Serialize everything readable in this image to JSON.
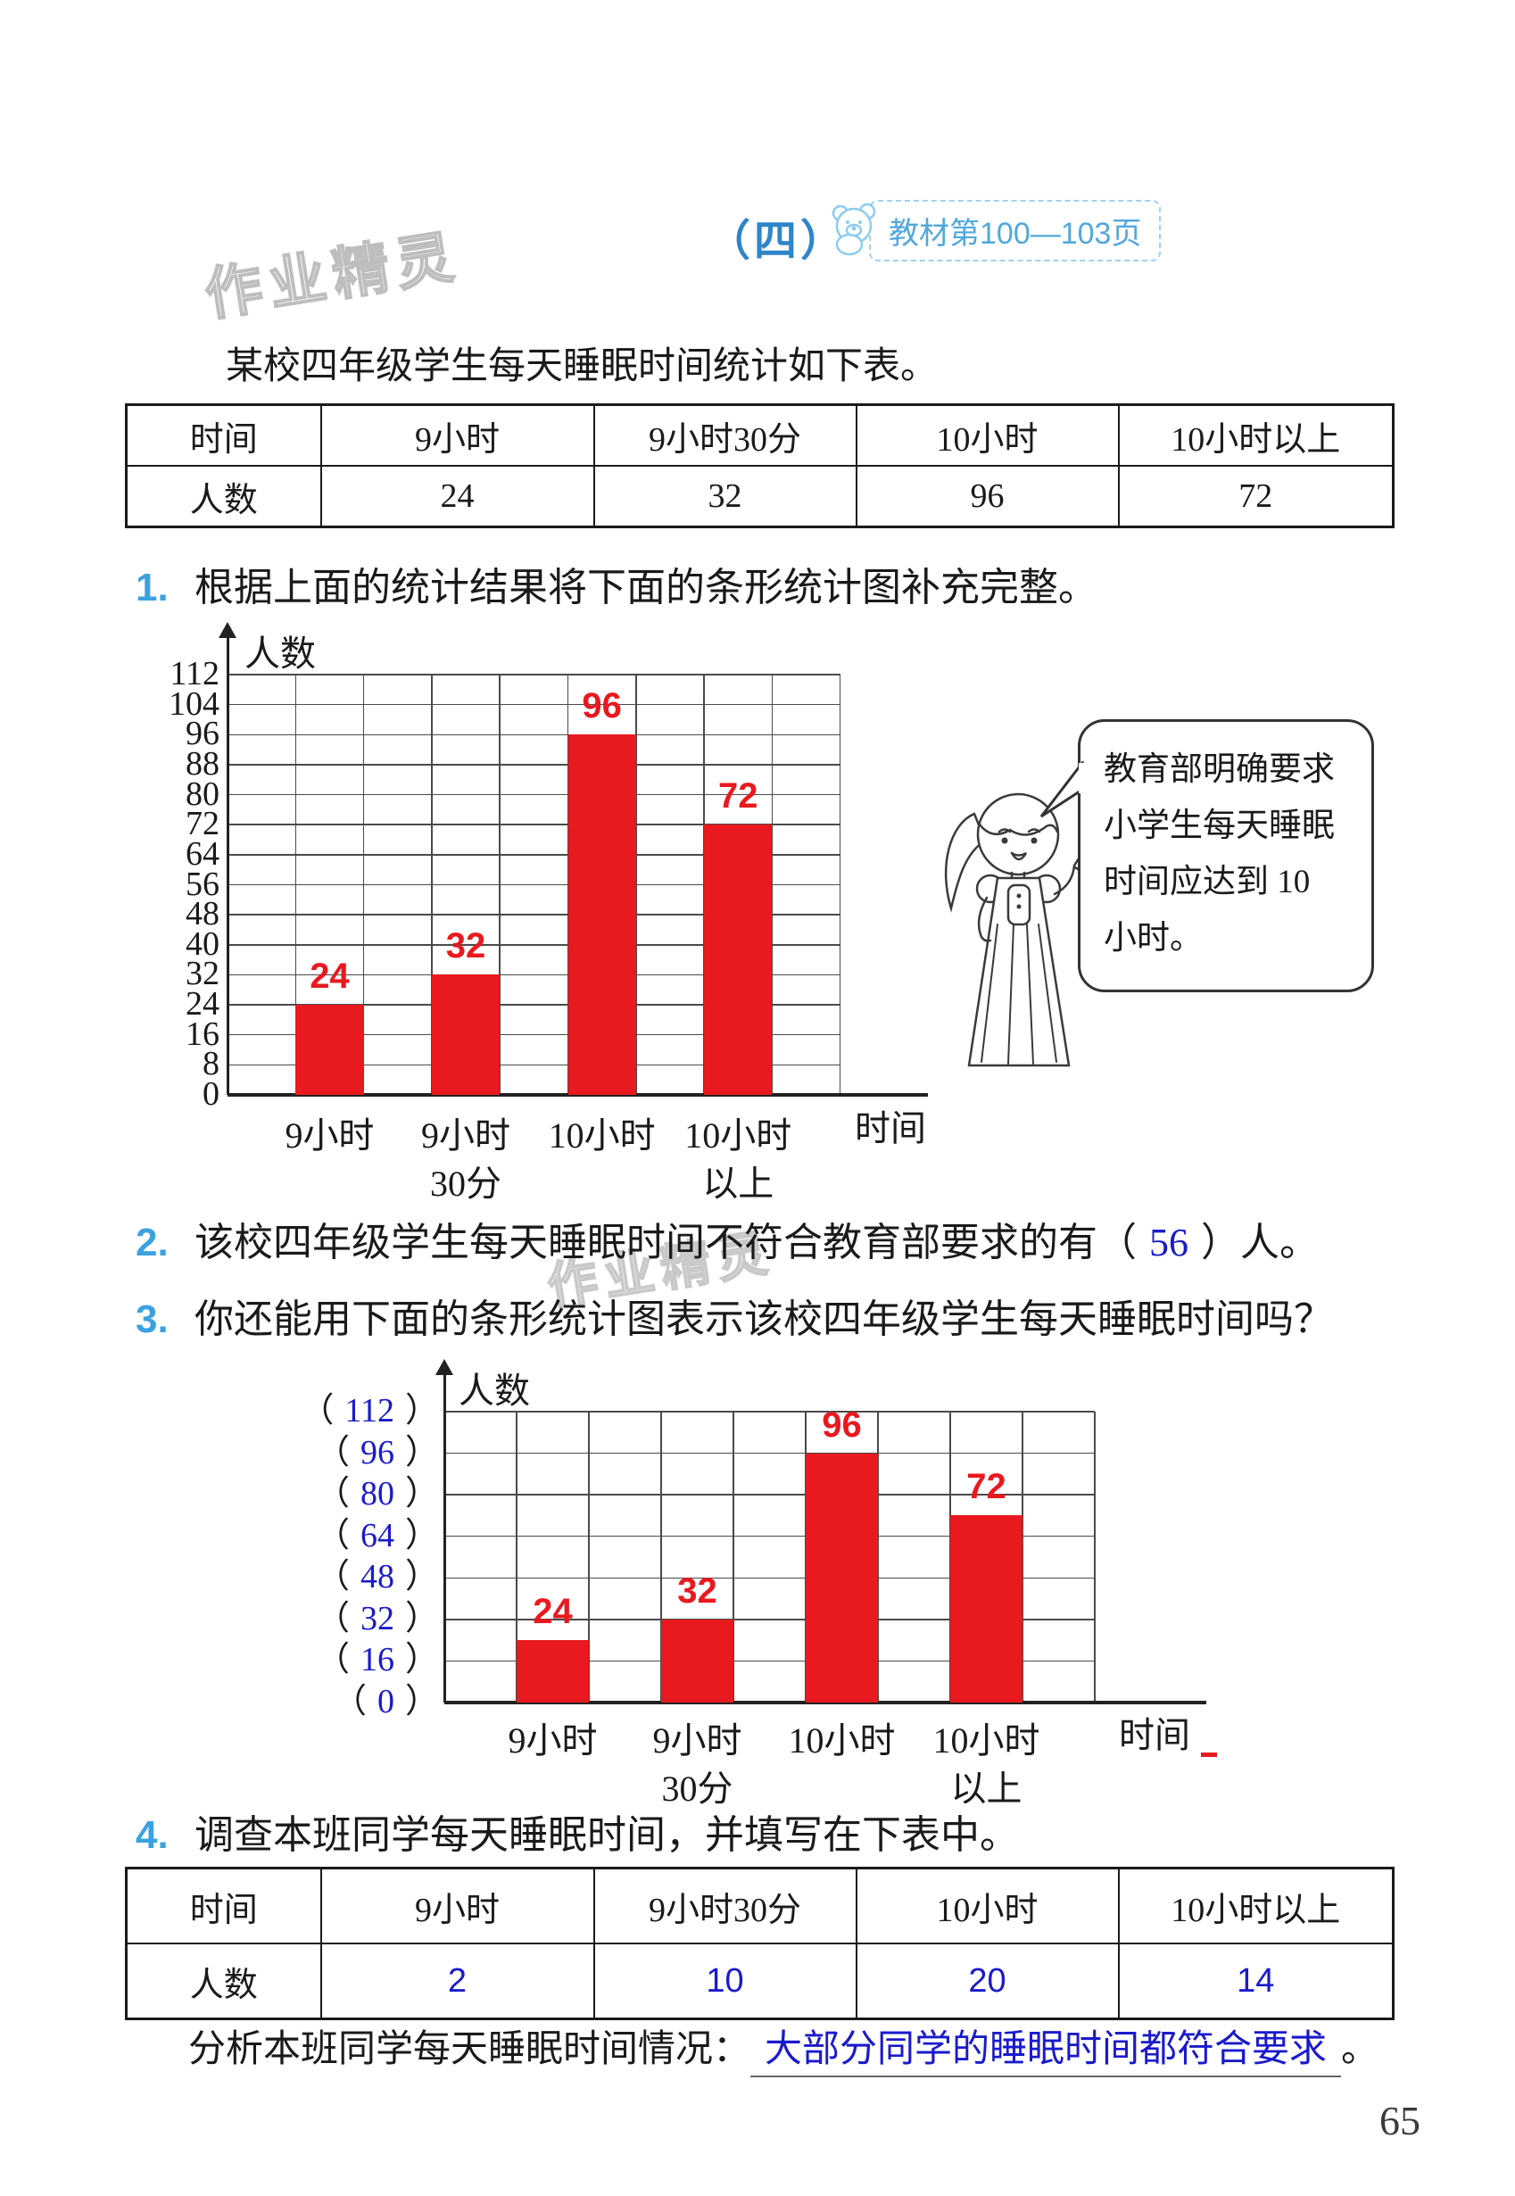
{
  "page": {
    "number": "65"
  },
  "header": {
    "section_label": "（四）",
    "badge_text": "教材第100—103页"
  },
  "watermark_text": "作业精灵",
  "intro_text": "某校四年级学生每天睡眠时间统计如下表。",
  "survey_table": {
    "row_headers": [
      "时间",
      "人数"
    ],
    "columns": [
      "9小时",
      "9小时30分",
      "10小时",
      "10小时以上"
    ],
    "values": [
      "24",
      "32",
      "96",
      "72"
    ]
  },
  "questions": {
    "q1_num": "1.",
    "q1_text": "根据上面的统计结果将下面的条形统计图补充完整。",
    "q2_num": "2.",
    "q2_pre": "该校四年级学生每天睡眠时间不符合教育部要求的有（",
    "q2_answer": "56",
    "q2_post": "）人。",
    "q3_num": "3.",
    "q3_text": "你还能用下面的条形统计图表示该校四年级学生每天睡眠时间吗？",
    "q4_num": "4.",
    "q4_text": "调查本班同学每天睡眠时间，并填写在下表中。"
  },
  "speech_bubble": {
    "lines": [
      "教育部明确要求",
      "小学生每天睡眠",
      "时间应达到 10",
      "小时。"
    ]
  },
  "chart_data": [
    {
      "type": "bar",
      "name": "sleep-time-bar-chart-1",
      "title": "",
      "ylabel": "人数",
      "xlabel": "时间",
      "ylim": [
        0,
        112
      ],
      "ytick_step": 8,
      "yticks": [
        0,
        8,
        16,
        24,
        32,
        40,
        48,
        56,
        64,
        72,
        80,
        88,
        96,
        104,
        112
      ],
      "categories": [
        [
          "9小时"
        ],
        [
          "9小时",
          "30分"
        ],
        [
          "10小时"
        ],
        [
          "10小时",
          "以上"
        ]
      ],
      "values": [
        24,
        32,
        96,
        72
      ],
      "grid": true,
      "bar_color": "#e8191f",
      "value_label_color": "#e8191f",
      "tick_label_style": "plain"
    },
    {
      "type": "bar",
      "name": "sleep-time-bar-chart-2",
      "title": "",
      "ylabel": "人数",
      "xlabel": "时间",
      "ylim": [
        0,
        112
      ],
      "ytick_step": 16,
      "yticks": [
        0,
        16,
        32,
        48,
        64,
        80,
        96,
        112
      ],
      "categories": [
        [
          "9小时"
        ],
        [
          "9小时",
          "30分"
        ],
        [
          "10小时"
        ],
        [
          "10小时",
          "以上"
        ]
      ],
      "values": [
        24,
        32,
        96,
        72
      ],
      "grid": true,
      "bar_color": "#e8191f",
      "value_label_color": "#e8191f",
      "tick_label_style": "parenthesized",
      "tick_number_color": "#1a1acc"
    }
  ],
  "class_table": {
    "row_headers": [
      "时间",
      "人数"
    ],
    "columns": [
      "9小时",
      "9小时30分",
      "10小时",
      "10小时以上"
    ],
    "values": [
      "2",
      "10",
      "20",
      "14"
    ],
    "value_color": "#1a1acc"
  },
  "analysis": {
    "label": "分析本班同学每天睡眠时间情况：",
    "answer": "大部分同学的睡眠时间都符合要求",
    "period": "。"
  },
  "colors": {
    "question_number_blue": "#3ba1e0",
    "header_blue": "#2e86c9",
    "badge_blue": "#51a8dc",
    "answer_blue": "#1a1acc",
    "bar_red": "#e8191f",
    "watermark_gray": "#b3b3b3"
  }
}
